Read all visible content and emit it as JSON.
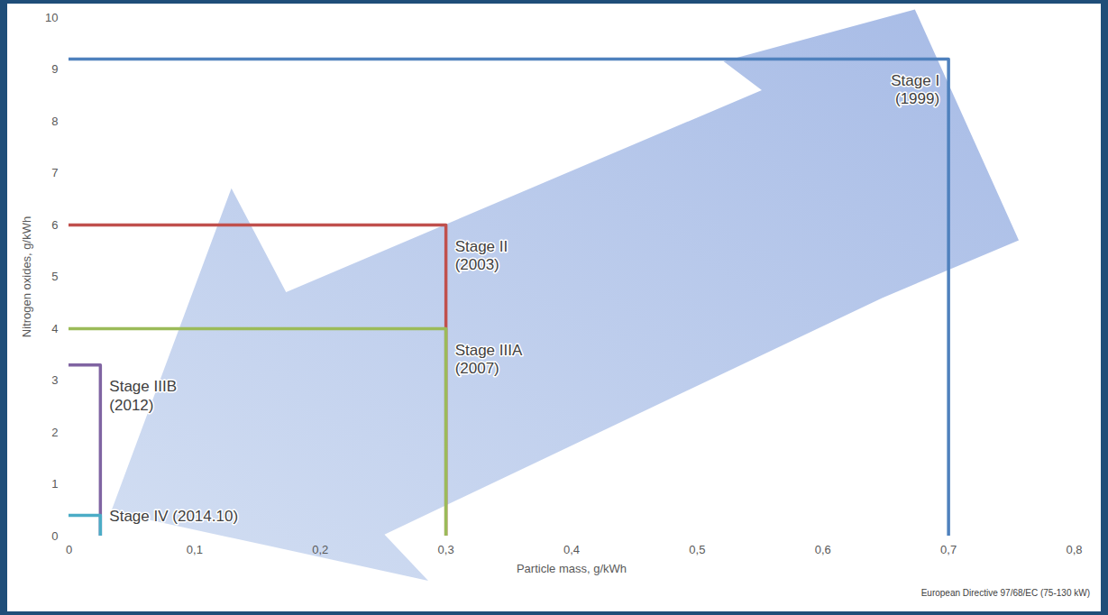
{
  "chart_data": {
    "type": "line",
    "xlabel": "Particle mass, g/kWh",
    "ylabel": "Nitrogen oxides, g/kWh",
    "caption": "European Directive 97/68/EC (75-130 kW)",
    "xlim": [
      0,
      0.8
    ],
    "xticks": [
      0,
      {
        "value": 0.1,
        "label": "0,1"
      },
      {
        "value": 0.2,
        "label": "0,2"
      },
      {
        "value": 0.3,
        "label": "0,3"
      },
      {
        "value": 0.4,
        "label": "0,4"
      },
      {
        "value": 0.5,
        "label": "0,5"
      },
      {
        "value": 0.6,
        "label": "0,6"
      },
      {
        "value": 0.7,
        "label": "0,7"
      },
      {
        "value": 0.8,
        "label": "0,8"
      }
    ],
    "ylim": [
      0,
      10
    ],
    "yticks": [
      0,
      1,
      2,
      3,
      4,
      5,
      6,
      7,
      8,
      9,
      10
    ],
    "grid": false,
    "series": [
      {
        "name": "Stage I (1999)",
        "color": "#4f81bd",
        "x": [
          0,
          0.7,
          0.7
        ],
        "values": [
          9.2,
          9.2,
          0
        ]
      },
      {
        "name": "Stage II (2003)",
        "color": "#c0504d",
        "x": [
          0,
          0.3,
          0.3
        ],
        "values": [
          6,
          6,
          0
        ]
      },
      {
        "name": "Stage IIIA (2007)",
        "color": "#9bbb59",
        "x": [
          0,
          0.3,
          0.3
        ],
        "values": [
          4,
          4,
          0
        ]
      },
      {
        "name": "Stage IIIB (2012)",
        "color": "#8064a2",
        "x": [
          0,
          0.025,
          0.025
        ],
        "values": [
          3.3,
          3.3,
          0
        ]
      },
      {
        "name": "Stage IV (2014.10)",
        "color": "#4bacc6",
        "x": [
          0,
          0.025,
          0.025
        ],
        "values": [
          0.4,
          0.4,
          0
        ]
      }
    ]
  }
}
